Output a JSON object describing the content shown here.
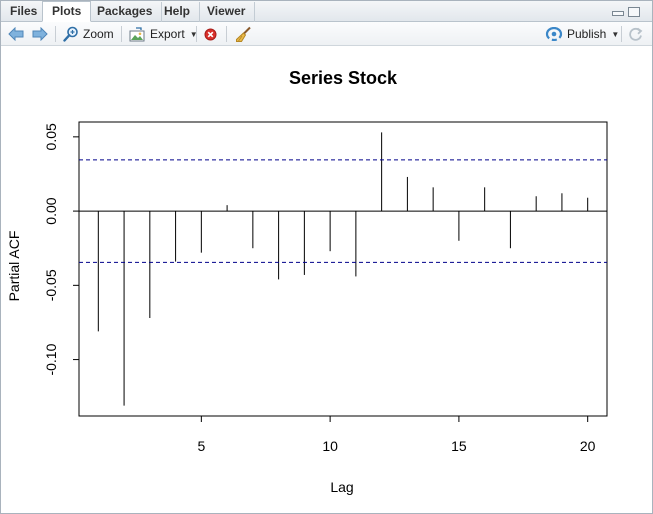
{
  "tabs": [
    {
      "label": "Files"
    },
    {
      "label": "Plots"
    },
    {
      "label": "Packages"
    },
    {
      "label": "Help"
    },
    {
      "label": "Viewer"
    }
  ],
  "active_tab": "Plots",
  "toolbar": {
    "zoom_label": "Zoom",
    "export_label": "Export",
    "publish_label": "Publish"
  },
  "colors": {
    "conf_line": "#00008b",
    "bars": "#000000",
    "accent": "#3a87c8"
  },
  "chart_data": {
    "type": "bar",
    "title": "Series  Stock",
    "xlabel": "Lag",
    "ylabel": "Partial ACF",
    "x": [
      1,
      2,
      3,
      4,
      5,
      6,
      7,
      8,
      9,
      10,
      11,
      12,
      13,
      14,
      15,
      16,
      17,
      18,
      19,
      20
    ],
    "values": [
      -0.081,
      -0.131,
      -0.072,
      -0.034,
      -0.028,
      0.004,
      -0.025,
      -0.046,
      -0.043,
      -0.027,
      -0.044,
      0.053,
      0.023,
      0.016,
      -0.02,
      0.016,
      -0.025,
      0.01,
      0.012,
      0.009
    ],
    "conf_bounds": [
      0.0345,
      -0.0345
    ],
    "xlim": [
      0.25,
      20.75
    ],
    "ylim": [
      -0.138,
      0.06
    ],
    "xticks": [
      5,
      10,
      15,
      20
    ],
    "xtick_labels": [
      "5",
      "10",
      "15",
      "20"
    ],
    "yticks": [
      0.05,
      0.0,
      -0.05,
      -0.1
    ],
    "ytick_labels": [
      "0.05",
      "0.00",
      "-0.05",
      "-0.10"
    ]
  }
}
